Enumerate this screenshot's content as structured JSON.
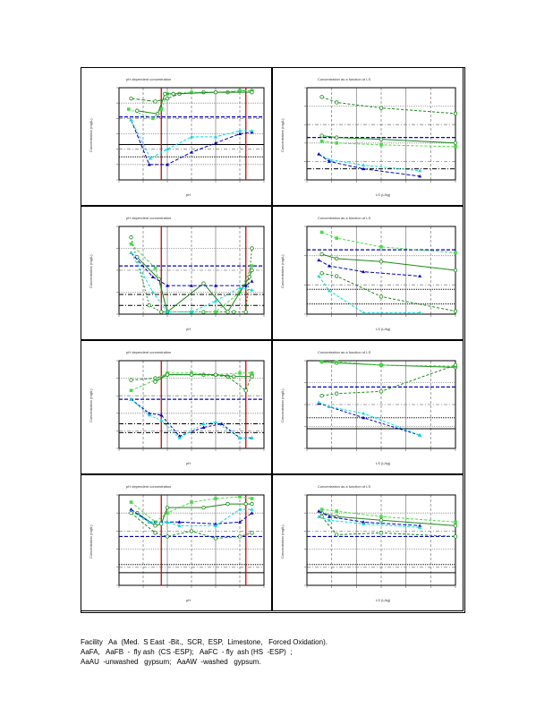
{
  "caption": [
    "Facility   Aa  (Med.  S East  -Bit.,  SCR,  ESP,  Limestone,   Forced Oxidation).",
    "AaFA,   AaFB  -  fly ash  (CS -ESP);   AaFC  - fly  ash (HS  -ESP)  ;",
    "AaAU  -unwashed   gypsum;   AaAW  -washed   gypsum."
  ],
  "chart_data": [
    {
      "type": "line",
      "id": "p1-ph",
      "title": "pH dependent concentration",
      "xlabel": "pH",
      "ylabel": "Concentration (mg/L)",
      "xlim": [
        2,
        14
      ],
      "ylim": [
        0,
        6
      ],
      "vlines": [
        5.5,
        12.5
      ],
      "hlines": [
        {
          "y": 4.1,
          "style": "blue-dash"
        },
        {
          "y": 2.3,
          "style": "black"
        },
        {
          "y": 1.5,
          "style": "black-dot"
        }
      ],
      "series": [
        {
          "name": "AaFA",
          "color": "#1a8a1a",
          "dash": "4 2",
          "x": [
            3,
            5,
            6,
            7,
            9,
            11,
            12,
            13
          ],
          "y": [
            5.3,
            5.1,
            5.3,
            5.6,
            5.7,
            5.7,
            5.8,
            5.8
          ]
        },
        {
          "name": "AaFB",
          "color": "#44dd44",
          "dash": "2 2",
          "x": [
            2.8,
            4.8,
            5.5,
            6,
            8,
            10,
            12,
            13
          ],
          "y": [
            4.6,
            4.0,
            4.6,
            5.6,
            5.7,
            5.7,
            5.8,
            5.8
          ]
        },
        {
          "name": "AaFC",
          "color": "#1a8a1a",
          "dash": "",
          "x": [
            3.5,
            5.2,
            5.8,
            6.5,
            10,
            13
          ],
          "y": [
            4.5,
            4.3,
            5.6,
            5.6,
            5.7,
            5.7
          ]
        },
        {
          "name": "AaAU",
          "color": "#0000cc",
          "dash": "4 2",
          "x": [
            3,
            4.5,
            6,
            8,
            10,
            12,
            13
          ],
          "y": [
            3.9,
            1.0,
            1.0,
            1.8,
            2.4,
            3.0,
            3.1
          ]
        },
        {
          "name": "AaAW",
          "color": "#00dddd",
          "dash": "3 2",
          "x": [
            3,
            4.6,
            6,
            8,
            10,
            12,
            13
          ],
          "y": [
            3.9,
            1.4,
            2.0,
            2.8,
            2.8,
            3.2,
            3.2
          ]
        }
      ]
    },
    {
      "type": "line",
      "id": "p1-ls",
      "title": "Concentration as a function of LS",
      "xlabel": "LS (L/kg)",
      "ylabel": "Concentration (mg/L)",
      "xlim": [
        0,
        10
      ],
      "ylim": [
        0,
        5
      ],
      "hlines": [
        {
          "y": 2.3,
          "style": "blue-dash"
        },
        {
          "y": 0.6,
          "style": "black-dashdot"
        }
      ],
      "series": [
        {
          "name": "AaFA",
          "color": "#1a8a1a",
          "dash": "3 2",
          "x": [
            1,
            2,
            5,
            10
          ],
          "y": [
            4.5,
            4.2,
            3.9,
            3.6
          ]
        },
        {
          "name": "AaFC",
          "color": "#1a8a1a",
          "dash": "",
          "x": [
            1,
            2,
            5,
            10
          ],
          "y": [
            2.4,
            2.3,
            2.2,
            2.0
          ]
        },
        {
          "name": "AaFB",
          "color": "#44dd44",
          "dash": "3 2",
          "x": [
            1,
            2,
            5,
            10
          ],
          "y": [
            2.1,
            2.0,
            1.9,
            1.8
          ]
        },
        {
          "name": "AaAW",
          "color": "#00dddd",
          "dash": "3 2",
          "x": [
            0.8,
            1.5,
            3.8,
            7.6
          ],
          "y": [
            1.4,
            1.1,
            0.8,
            0.5
          ]
        },
        {
          "name": "AaAU",
          "color": "#0000cc",
          "dash": "4 2",
          "x": [
            0.8,
            1.5,
            3.8,
            7.6
          ],
          "y": [
            1.4,
            1.0,
            0.6,
            0.2
          ]
        }
      ]
    },
    {
      "type": "line",
      "id": "p2-ph",
      "title": "pH dependent concentration",
      "xlabel": "pH",
      "ylabel": "Concentration (mg/L)",
      "xlim": [
        2,
        14
      ],
      "ylim": [
        0,
        4
      ],
      "vlines": [
        5.5,
        12.5
      ],
      "hlines": [
        {
          "y": 2.2,
          "style": "blue-dash"
        },
        {
          "y": 0.9,
          "style": "black-dashdot"
        },
        {
          "y": 0.4,
          "style": "black-dashdot"
        }
      ],
      "series": [
        {
          "name": "AaFA",
          "color": "#1a8a1a",
          "dash": "2 2",
          "x": [
            3,
            4.5,
            5.5,
            6,
            9,
            11.5,
            12.5,
            13
          ],
          "y": [
            3.5,
            0.4,
            0.1,
            0.1,
            0.1,
            0.1,
            0.1,
            3.0
          ]
        },
        {
          "name": "AaFB",
          "color": "#44dd44",
          "dash": "3 2",
          "x": [
            3,
            5,
            6,
            8,
            10,
            12,
            13
          ],
          "y": [
            3.2,
            2.1,
            0.1,
            0.1,
            0.1,
            1.0,
            2.2
          ]
        },
        {
          "name": "AaFC",
          "color": "#1a8a1a",
          "dash": "",
          "x": [
            3.5,
            5.3,
            6,
            9,
            11,
            12.8,
            13
          ],
          "y": [
            2.6,
            1.6,
            0.1,
            1.4,
            0.1,
            1.7,
            2.0
          ]
        },
        {
          "name": "AaAU",
          "color": "#0000cc",
          "dash": "4 2",
          "x": [
            3,
            4.8,
            6,
            8,
            10,
            12.5,
            13
          ],
          "y": [
            2.8,
            1.7,
            1.3,
            1.3,
            1.3,
            1.3,
            1.5
          ]
        },
        {
          "name": "AaAW",
          "color": "#00dddd",
          "dash": "3 2",
          "x": [
            3,
            4.8,
            6,
            8,
            10,
            12,
            13
          ],
          "y": [
            2.8,
            1.0,
            0.1,
            0.1,
            0.6,
            1.2,
            1.1
          ]
        }
      ]
    },
    {
      "type": "line",
      "id": "p2-ls",
      "title": "Concentration as a function of LS",
      "xlabel": "LS (L/kg)",
      "ylabel": "Concentration (mg/L)",
      "xlim": [
        0,
        10
      ],
      "ylim": [
        0,
        3
      ],
      "hlines": [
        {
          "y": 2.2,
          "style": "blue-dash"
        },
        {
          "y": 0.85,
          "style": "black-dot"
        },
        {
          "y": 0.35,
          "style": "black-dot"
        }
      ],
      "series": [
        {
          "name": "AaFB",
          "color": "#44dd44",
          "dash": "3 2",
          "x": [
            1,
            2,
            5,
            10
          ],
          "y": [
            2.8,
            2.6,
            2.3,
            2.1
          ]
        },
        {
          "name": "AaFC",
          "color": "#1a8a1a",
          "dash": "",
          "x": [
            1,
            2,
            5,
            10
          ],
          "y": [
            2.05,
            1.9,
            1.8,
            1.5
          ]
        },
        {
          "name": "AaAU",
          "color": "#0000cc",
          "dash": "4 2",
          "x": [
            0.8,
            1.5,
            3.8,
            7.6
          ],
          "y": [
            1.85,
            1.65,
            1.45,
            1.3
          ]
        },
        {
          "name": "AaFA",
          "color": "#1a8a1a",
          "dash": "3 2",
          "x": [
            1,
            2,
            5,
            10
          ],
          "y": [
            1.4,
            1.3,
            0.6,
            0.1
          ]
        },
        {
          "name": "AaAW",
          "color": "#00dddd",
          "dash": "3 2",
          "x": [
            0.8,
            1.5,
            3.8,
            7.6
          ],
          "y": [
            1.3,
            0.8,
            0.05,
            0.05
          ]
        }
      ]
    },
    {
      "type": "line",
      "id": "p3-ph",
      "title": "pH dependent concentration",
      "xlabel": "pH",
      "ylabel": "Concentration (mg/L)",
      "xlim": [
        2,
        14
      ],
      "ylim": [
        0,
        5
      ],
      "vlines": [
        5.5,
        12.5
      ],
      "hlines": [
        {
          "y": 2.8,
          "style": "blue-dash"
        },
        {
          "y": 1.4,
          "style": "black-dashdot"
        },
        {
          "y": 0.9,
          "style": "black-dashdot"
        }
      ],
      "series": [
        {
          "name": "AaFA",
          "color": "#1a8a1a",
          "dash": "3 2",
          "x": [
            3,
            5,
            6,
            9,
            11,
            12.5,
            13
          ],
          "y": [
            3.9,
            4.0,
            4.2,
            4.2,
            4.1,
            3.3,
            4.2
          ]
        },
        {
          "name": "AaFB",
          "color": "#44dd44",
          "dash": "3 2",
          "x": [
            3,
            5,
            6,
            8,
            10,
            12,
            13
          ],
          "y": [
            3.3,
            3.9,
            4.3,
            4.3,
            4.2,
            4.3,
            4.3
          ]
        },
        {
          "name": "AaFC",
          "color": "#1a8a1a",
          "dash": "",
          "x": [
            5,
            6,
            8,
            10,
            11.5,
            13
          ],
          "y": [
            3.8,
            4.2,
            4.2,
            4.2,
            4.1,
            4.1
          ]
        },
        {
          "name": "AaAU",
          "color": "#0000cc",
          "dash": "3 2",
          "x": [
            3,
            4.5,
            5.5,
            7,
            9,
            10.5,
            12,
            13
          ],
          "y": [
            2.8,
            2.0,
            1.9,
            0.7,
            1.2,
            1.4,
            0.6,
            0.6
          ]
        },
        {
          "name": "AaAW",
          "color": "#00dddd",
          "dash": "2 2",
          "x": [
            3,
            4.5,
            5.5,
            7,
            9,
            10,
            12,
            13
          ],
          "y": [
            2.8,
            1.9,
            1.6,
            0.6,
            1.4,
            1.5,
            0.6,
            0.6
          ]
        }
      ]
    },
    {
      "type": "line",
      "id": "p3-ls",
      "title": "Concentration as a function of LS",
      "xlabel": "LS (L/kg)",
      "ylabel": "Concentration (mg/L)",
      "xlim": [
        0,
        10
      ],
      "ylim": [
        0,
        4
      ],
      "hlines": [
        {
          "y": 2.8,
          "style": "blue-dash"
        },
        {
          "y": 1.4,
          "style": "black-dot"
        },
        {
          "y": 0.9,
          "style": "black"
        }
      ],
      "series": [
        {
          "name": "AaFC",
          "color": "#1a8a1a",
          "dash": "",
          "x": [
            1,
            2,
            5,
            10
          ],
          "y": [
            3.95,
            3.9,
            3.8,
            3.7
          ]
        },
        {
          "name": "AaFB",
          "color": "#44dd44",
          "dash": "3 2",
          "x": [
            1,
            2,
            5,
            10
          ],
          "y": [
            3.95,
            3.95,
            3.8,
            3.75
          ]
        },
        {
          "name": "AaFA",
          "color": "#1a8a1a",
          "dash": "3 2",
          "x": [
            1,
            2,
            5,
            10
          ],
          "y": [
            2.4,
            2.5,
            2.6,
            3.8
          ]
        },
        {
          "name": "AaAU",
          "color": "#0000cc",
          "dash": "3 2",
          "x": [
            0.8,
            1.5,
            3.8,
            7.6
          ],
          "y": [
            2.05,
            1.9,
            1.4,
            0.6
          ]
        },
        {
          "name": "AaAW",
          "color": "#00dddd",
          "dash": "3 2",
          "x": [
            0.8,
            1.5,
            3.8,
            7.6
          ],
          "y": [
            2.1,
            1.9,
            1.6,
            0.6
          ]
        }
      ]
    },
    {
      "type": "line",
      "id": "p4-ph",
      "title": "pH dependent concentration",
      "xlabel": "pH",
      "ylabel": "Concentration (mg/L)",
      "xlim": [
        2,
        14
      ],
      "ylim": [
        0,
        5
      ],
      "vlines": [
        5.5,
        12.5
      ],
      "hlines": [
        {
          "y": 2.7,
          "style": "blue-dash"
        },
        {
          "y": 1.15,
          "style": "black-dot"
        },
        {
          "y": 0.7,
          "style": "black"
        }
      ],
      "series": [
        {
          "name": "AaFB",
          "color": "#44dd44",
          "dash": "3 2",
          "x": [
            3,
            5,
            6,
            8,
            10,
            12,
            13
          ],
          "y": [
            4.6,
            3.5,
            4.0,
            4.6,
            4.8,
            4.9,
            4.8
          ]
        },
        {
          "name": "AaFC",
          "color": "#1a8a1a",
          "dash": "",
          "x": [
            3.5,
            5,
            5.5,
            6,
            9,
            11,
            12.5,
            13
          ],
          "y": [
            4.0,
            3.3,
            3.4,
            4.3,
            4.3,
            4.5,
            4.5,
            4.5
          ]
        },
        {
          "name": "AaAU",
          "color": "#0000cc",
          "dash": "4 2",
          "x": [
            3,
            4.5,
            6,
            7,
            10,
            12,
            13
          ],
          "y": [
            4.2,
            3.5,
            3.5,
            3.5,
            3.4,
            3.5,
            4.0
          ]
        },
        {
          "name": "AaAW",
          "color": "#00dddd",
          "dash": "3 2",
          "x": [
            3,
            4.5,
            6,
            7,
            10,
            12,
            13
          ],
          "y": [
            4.1,
            3.5,
            3.5,
            3.3,
            3.3,
            4.2,
            4.2
          ]
        },
        {
          "name": "AaFA",
          "color": "#1a8a1a",
          "dash": "3 2",
          "x": [
            3,
            5,
            6,
            8,
            10,
            12,
            13
          ],
          "y": [
            4.0,
            2.9,
            2.7,
            3.0,
            2.6,
            2.7,
            2.9
          ]
        }
      ]
    },
    {
      "type": "line",
      "id": "p4-ls",
      "title": "Concentration as a function of LS",
      "xlabel": "LS (L/kg)",
      "ylabel": "Concentration (mg/L)",
      "xlim": [
        0,
        10
      ],
      "ylim": [
        0,
        5
      ],
      "hlines": [
        {
          "y": 2.7,
          "style": "blue-dash"
        },
        {
          "y": 1.15,
          "style": "black-dot"
        },
        {
          "y": 0.7,
          "style": "black"
        }
      ],
      "series": [
        {
          "name": "AaFB",
          "color": "#44dd44",
          "dash": "3 2",
          "x": [
            1,
            2,
            5,
            10
          ],
          "y": [
            4.2,
            4.1,
            3.8,
            3.5
          ]
        },
        {
          "name": "AaFC",
          "color": "#1a8a1a",
          "dash": "",
          "x": [
            1,
            2,
            5,
            10
          ],
          "y": [
            4.0,
            3.8,
            3.6,
            3.3
          ]
        },
        {
          "name": "AaAU",
          "color": "#0000cc",
          "dash": "4 2",
          "x": [
            0.8,
            1.5,
            3.8,
            7.6
          ],
          "y": [
            4.1,
            3.8,
            3.5,
            3.3
          ]
        },
        {
          "name": "AaAW",
          "color": "#00dddd",
          "dash": "3 2",
          "x": [
            0.8,
            1.5,
            3.8,
            7.6
          ],
          "y": [
            3.8,
            3.6,
            3.4,
            3.2
          ]
        },
        {
          "name": "AaFA",
          "color": "#1a8a1a",
          "dash": "3 2",
          "x": [
            1,
            2,
            5,
            10
          ],
          "y": [
            3.8,
            2.8,
            2.9,
            2.7
          ]
        }
      ]
    }
  ]
}
